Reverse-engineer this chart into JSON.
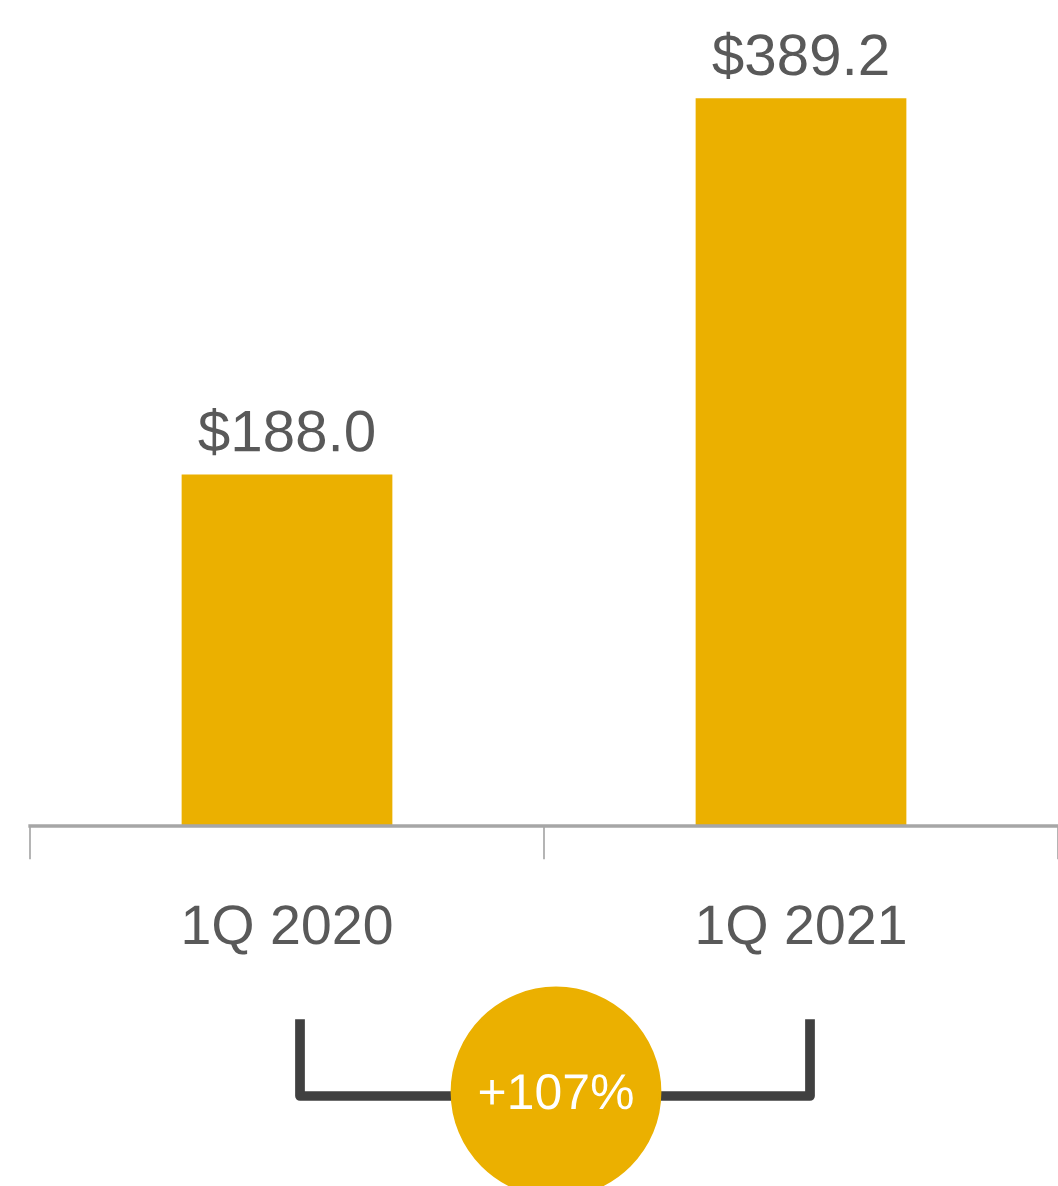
{
  "chart_data": {
    "type": "bar",
    "categories": [
      "1Q 2020",
      "1Q 2021"
    ],
    "values": [
      188.0,
      389.2
    ],
    "value_labels": [
      "$188.0",
      "$389.2"
    ],
    "color": "#ebb000",
    "annotations": [
      "+107%"
    ],
    "grid": false,
    "legend": false
  }
}
